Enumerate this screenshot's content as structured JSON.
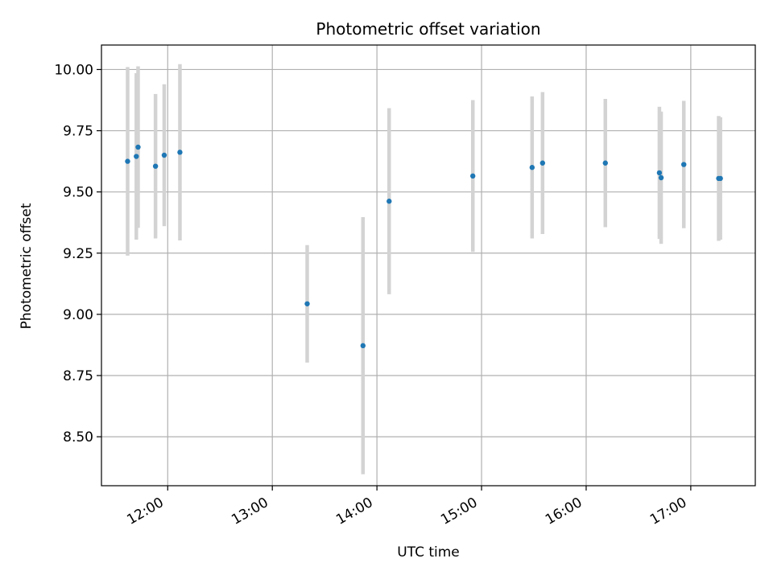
{
  "chart_data": {
    "type": "scatter",
    "title": "Photometric offset variation",
    "xlabel": "UTC time",
    "ylabel": "Photometric offset",
    "x_axis": "time",
    "xlim": [
      "11:22",
      "17:37"
    ],
    "ylim": [
      8.3,
      10.1
    ],
    "grid": true,
    "x_ticks": [
      "12:00",
      "13:00",
      "14:00",
      "15:00",
      "16:00",
      "17:00"
    ],
    "y_ticks": [
      "8.50",
      "8.75",
      "9.00",
      "9.25",
      "9.50",
      "9.75",
      "10.00"
    ],
    "points": [
      {
        "x": "11:37",
        "y": 9.625,
        "err": 0.385
      },
      {
        "x": "11:42",
        "y": 9.645,
        "err": 0.34
      },
      {
        "x": "11:43",
        "y": 9.683,
        "err": 0.33
      },
      {
        "x": "11:53",
        "y": 9.605,
        "err": 0.295
      },
      {
        "x": "11:58",
        "y": 9.65,
        "err": 0.29
      },
      {
        "x": "12:07",
        "y": 9.662,
        "err": 0.36
      },
      {
        "x": "13:20",
        "y": 9.043,
        "err": 0.24
      },
      {
        "x": "13:52",
        "y": 8.872,
        "err": 0.525
      },
      {
        "x": "14:07",
        "y": 9.462,
        "err": 0.38
      },
      {
        "x": "14:55",
        "y": 9.565,
        "err": 0.31
      },
      {
        "x": "15:29",
        "y": 9.6,
        "err": 0.29
      },
      {
        "x": "15:35",
        "y": 9.618,
        "err": 0.29
      },
      {
        "x": "16:11",
        "y": 9.618,
        "err": 0.262
      },
      {
        "x": "16:42",
        "y": 9.578,
        "err": 0.27
      },
      {
        "x": "16:43",
        "y": 9.558,
        "err": 0.27
      },
      {
        "x": "16:56",
        "y": 9.612,
        "err": 0.26
      },
      {
        "x": "17:16",
        "y": 9.555,
        "err": 0.255
      },
      {
        "x": "17:17",
        "y": 9.555,
        "err": 0.25
      }
    ],
    "colors": {
      "marker": "#1f77b4",
      "errorbar": "#d3d3d3",
      "grid": "#b0b0b0",
      "axes": "#000000"
    }
  }
}
